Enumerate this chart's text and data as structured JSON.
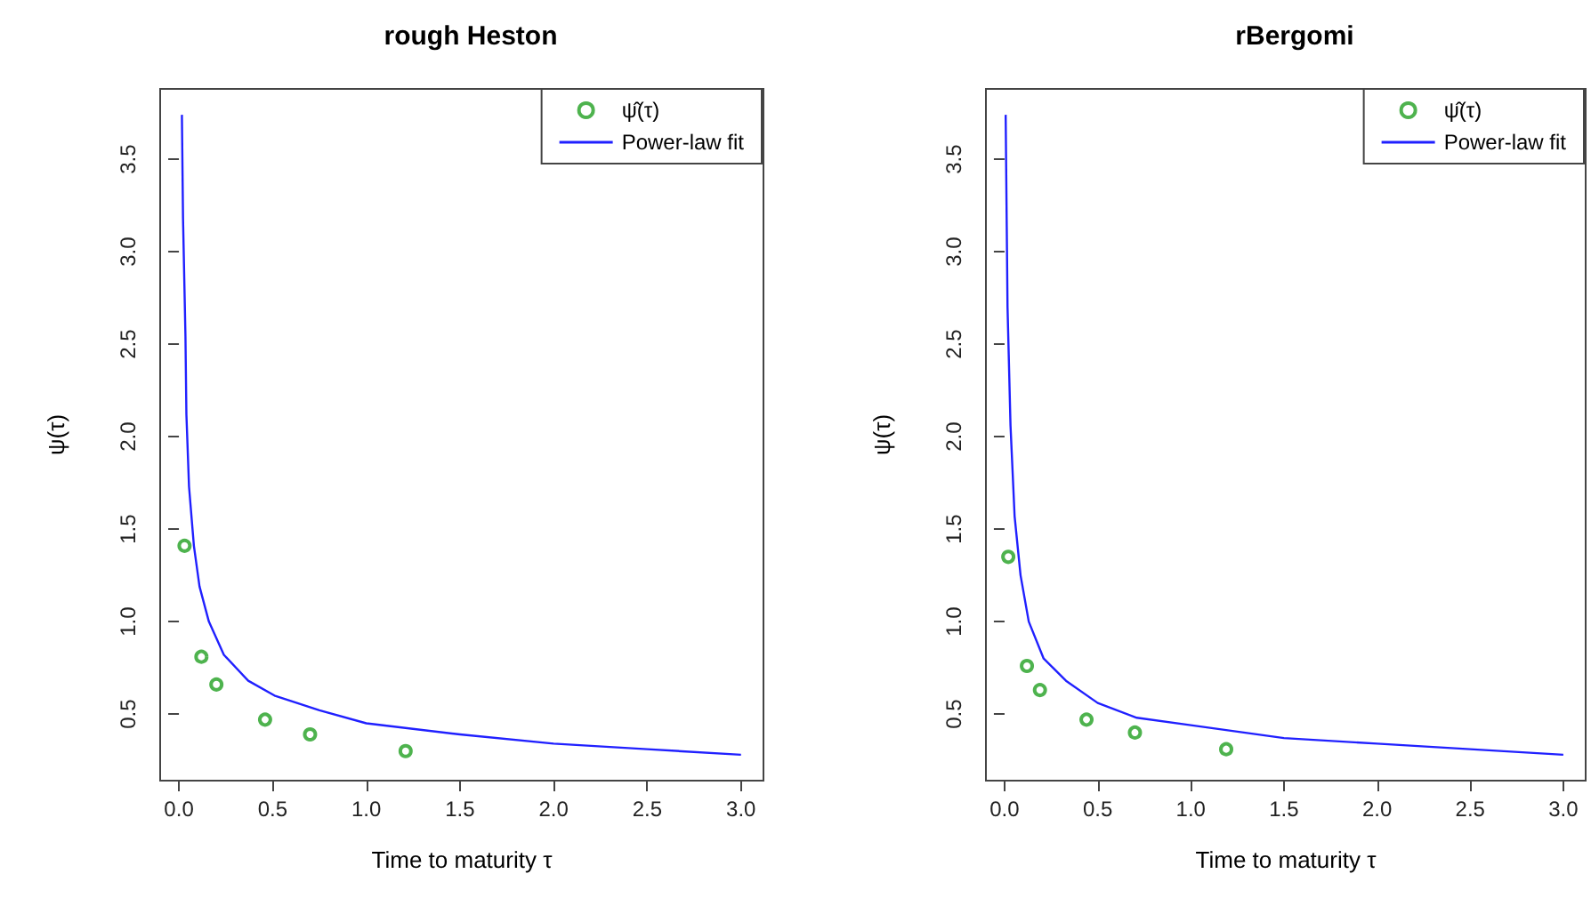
{
  "chart_data": [
    {
      "type": "scatter",
      "title": "rough Heston",
      "xlabel": "Time to maturity τ",
      "ylabel": "ψ(τ)",
      "xlim": [
        -0.1,
        3.12
      ],
      "ylim": [
        0.14,
        3.88
      ],
      "xticks": [
        {
          "value": 0,
          "label": "0.0"
        },
        {
          "value": 0.5,
          "label": "0.5"
        },
        {
          "value": 1,
          "label": "1.0"
        },
        {
          "value": 1.5,
          "label": "1.5"
        },
        {
          "value": 2,
          "label": "2.0"
        },
        {
          "value": 2.5,
          "label": "2.5"
        },
        {
          "value": 3,
          "label": "3.0"
        }
      ],
      "yticks": [
        0.5,
        {
          "value": 1,
          "label": "1.0"
        },
        1.5,
        {
          "value": 2,
          "label": "2.0"
        },
        2.5,
        {
          "value": 3,
          "label": "3.0"
        },
        3.5
      ],
      "legend": "top right",
      "grid": false,
      "series": [
        {
          "name": "ψ̂(τ)",
          "marker": "circle",
          "color": "#22a022",
          "x": [
            0.03,
            0.12,
            0.2,
            0.46,
            0.7,
            1.21
          ],
          "values": [
            1.41,
            0.81,
            0.66,
            0.47,
            0.39,
            0.3
          ]
        },
        {
          "name": "Power-law fit",
          "type": "line",
          "marker": "none",
          "color": "#2020ff",
          "x": [
            0.016,
            0.022,
            0.035,
            0.04,
            0.054,
            0.08,
            0.11,
            0.16,
            0.24,
            0.37,
            0.51,
            0.75,
            1.0,
            1.5,
            2.0,
            2.5,
            3.0
          ],
          "values": [
            3.74,
            3.18,
            2.54,
            2.12,
            1.73,
            1.41,
            1.19,
            1.0,
            0.82,
            0.68,
            0.6,
            0.52,
            0.45,
            0.39,
            0.34,
            0.31,
            0.28
          ]
        }
      ]
    },
    {
      "type": "scatter",
      "title": "rBergomi",
      "xlabel": "Time to maturity τ",
      "ylabel": "ψ(τ)",
      "xlim": [
        -0.1,
        3.12
      ],
      "ylim": [
        0.14,
        3.88
      ],
      "xticks": [
        {
          "value": 0,
          "label": "0.0"
        },
        {
          "value": 0.5,
          "label": "0.5"
        },
        {
          "value": 1,
          "label": "1.0"
        },
        {
          "value": 1.5,
          "label": "1.5"
        },
        {
          "value": 2,
          "label": "2.0"
        },
        {
          "value": 2.5,
          "label": "2.5"
        },
        {
          "value": 3,
          "label": "3.0"
        }
      ],
      "yticks": [
        0.5,
        {
          "value": 1,
          "label": "1.0"
        },
        1.5,
        {
          "value": 2,
          "label": "2.0"
        },
        2.5,
        {
          "value": 3,
          "label": "3.0"
        },
        3.5
      ],
      "legend": "top right",
      "grid": false,
      "series": [
        {
          "name": "ψ̂(τ)",
          "marker": "circle",
          "color": "#22a022",
          "x": [
            0.02,
            0.12,
            0.19,
            0.44,
            0.7,
            1.19
          ],
          "values": [
            1.35,
            0.76,
            0.63,
            0.47,
            0.4,
            0.31
          ]
        },
        {
          "name": "Power-law fit",
          "type": "line",
          "marker": "none",
          "color": "#2020ff",
          "x": [
            0.006,
            0.016,
            0.032,
            0.054,
            0.086,
            0.13,
            0.21,
            0.33,
            0.5,
            0.71,
            1.0,
            1.5,
            2.0,
            2.5,
            3.0
          ],
          "values": [
            3.74,
            2.7,
            2.06,
            1.57,
            1.25,
            1.0,
            0.8,
            0.68,
            0.56,
            0.48,
            0.44,
            0.37,
            0.34,
            0.31,
            0.28
          ]
        }
      ]
    }
  ]
}
